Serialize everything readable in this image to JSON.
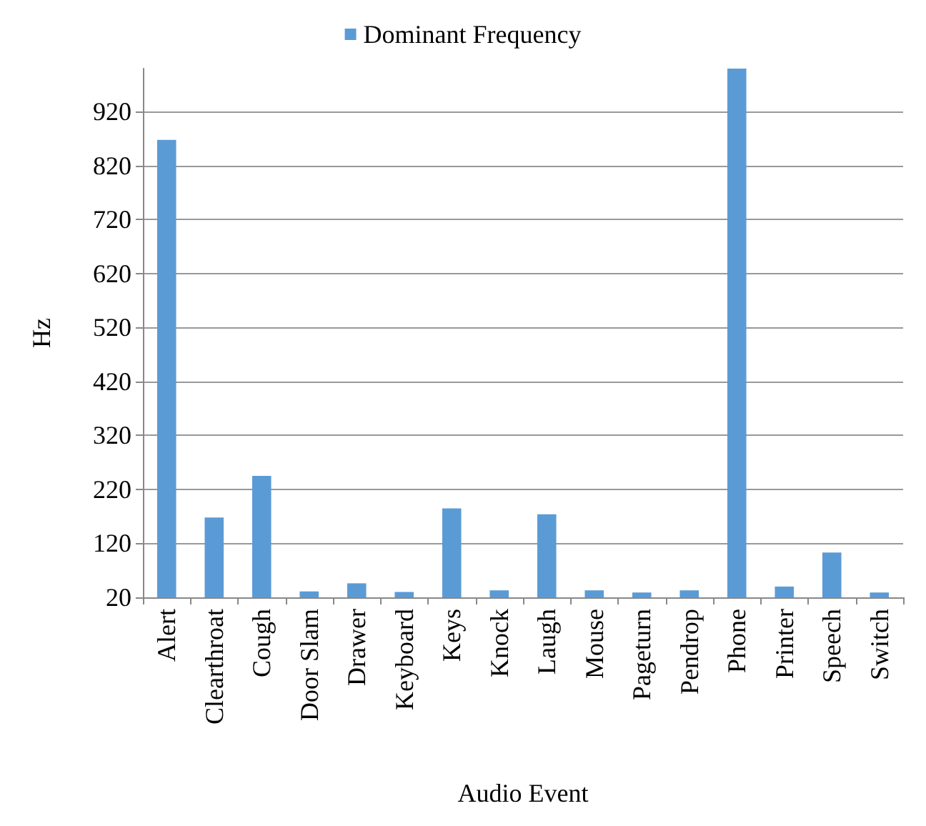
{
  "chart_data": {
    "type": "bar",
    "xlabel": "Audio Event",
    "ylabel": "Hz",
    "categories": [
      "Alert",
      "Clearthroat",
      "Cough",
      "Door Slam",
      "Drawer",
      "Keyboard",
      "Keys",
      "Knock",
      "Laugh",
      "Mouse",
      "Pageturn",
      "Pendrop",
      "Phone",
      "Printer",
      "Speech",
      "Switch"
    ],
    "series": [
      {
        "name": "Dominant Frequency",
        "color": "#5b9bd5",
        "values": [
          868,
          168,
          245,
          31,
          46,
          30,
          185,
          33,
          174,
          33,
          29,
          33,
          1000,
          40,
          103,
          29
        ]
      }
    ],
    "ylim": [
      20,
      1000
    ],
    "yticks": [
      20,
      120,
      220,
      320,
      420,
      520,
      620,
      720,
      820,
      920
    ],
    "grid": "y",
    "legend": "top"
  }
}
